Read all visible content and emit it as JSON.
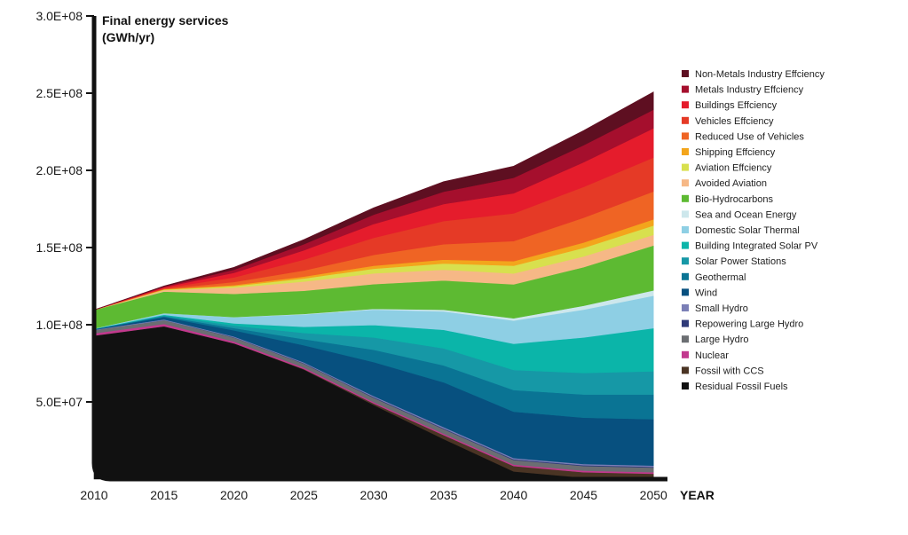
{
  "chart_data": {
    "type": "area",
    "stacked": true,
    "ylabel_line1": "Final energy services",
    "ylabel_line2": "(GWh/yr)",
    "xlabel": "YEAR",
    "xlim": [
      2010,
      2051
    ],
    "ylim": [
      0,
      300000000
    ],
    "grid": false,
    "legend_position": "right",
    "x_ticks": [
      2010,
      2015,
      2020,
      2025,
      2030,
      2035,
      2040,
      2045,
      2050
    ],
    "x_tick_labels": [
      "2010",
      "2015",
      "2020",
      "2025",
      "2030",
      "2035",
      "2040",
      "2045",
      "2050"
    ],
    "y_ticks": [
      50000000,
      100000000,
      150000000,
      200000000,
      250000000,
      300000000
    ],
    "y_tick_labels": [
      "5.0E+07",
      "1.0E+08",
      "1.5E+08",
      "2.0E+08",
      "2.5E+08",
      "3.0E+08"
    ],
    "x": [
      2010,
      2015,
      2020,
      2025,
      2030,
      2035,
      2040,
      2045,
      2050
    ],
    "series": [
      {
        "name": "Residual Fossil Fuels",
        "color": "#111111",
        "values": [
          93000000,
          99000000,
          88000000,
          71000000,
          48000000,
          26000000,
          5000000,
          1000000,
          0
        ]
      },
      {
        "name": "Fossil with CCS",
        "color": "#4a3424",
        "values": [
          0,
          0,
          0,
          300000,
          1000000,
          2500000,
          3500000,
          3500000,
          3500000
        ]
      },
      {
        "name": "Nuclear",
        "color": "#c2398e",
        "values": [
          1500000,
          1500000,
          1200000,
          1000000,
          900000,
          900000,
          900000,
          1000000,
          1000000
        ]
      },
      {
        "name": "Large Hydro",
        "color": "#6b6e72",
        "values": [
          2000000,
          2500000,
          2500000,
          2500000,
          2800000,
          3000000,
          3000000,
          3000000,
          3000000
        ]
      },
      {
        "name": "Repowering Large Hydro",
        "color": "#2f3a78",
        "values": [
          0,
          0,
          200000,
          300000,
          400000,
          500000,
          500000,
          500000,
          500000
        ]
      },
      {
        "name": "Small Hydro",
        "color": "#7b7fb6",
        "values": [
          300000,
          500000,
          500000,
          600000,
          700000,
          800000,
          800000,
          800000,
          800000
        ]
      },
      {
        "name": "Wind",
        "color": "#07507f",
        "values": [
          300000,
          1500000,
          4000000,
          11000000,
          22000000,
          29000000,
          30000000,
          30000000,
          30000000
        ]
      },
      {
        "name": "Geothermal",
        "color": "#0a7494",
        "values": [
          100000,
          500000,
          1500000,
          4000000,
          8000000,
          11000000,
          14000000,
          15000000,
          16000000
        ]
      },
      {
        "name": "Solar Power Stations",
        "color": "#1698a6",
        "values": [
          100000,
          500000,
          1500000,
          4000000,
          8000000,
          11000000,
          13000000,
          14000000,
          15000000
        ]
      },
      {
        "name": "Building Integrated Solar PV",
        "color": "#0bb5a9",
        "values": [
          100000,
          500000,
          1500000,
          4000000,
          8000000,
          12000000,
          17000000,
          23000000,
          28000000
        ]
      },
      {
        "name": "Domestic Solar Thermal",
        "color": "#8ecfe4",
        "values": [
          200000,
          1000000,
          4000000,
          8000000,
          10000000,
          12000000,
          15000000,
          18000000,
          21000000
        ]
      },
      {
        "name": "Sea and Ocean Energy",
        "color": "#cde7ec",
        "values": [
          0,
          0,
          100000,
          300000,
          500000,
          1000000,
          1500000,
          2500000,
          3500000
        ]
      },
      {
        "name": "Bio-Hydrocarbons",
        "color": "#5dba32",
        "values": [
          12000000,
          14000000,
          15000000,
          15000000,
          16000000,
          19000000,
          22000000,
          25000000,
          29000000
        ]
      },
      {
        "name": "Avoided Aviation",
        "color": "#f6b886",
        "values": [
          0,
          1000000,
          4000000,
          6000000,
          7000000,
          7000000,
          7000000,
          7000000,
          7000000
        ]
      },
      {
        "name": "Aviation Effciency",
        "color": "#d8e04e",
        "values": [
          0,
          300000,
          1000000,
          2000000,
          3000000,
          4000000,
          5000000,
          5500000,
          6000000
        ]
      },
      {
        "name": "Shipping Effciency",
        "color": "#f3a51c",
        "values": [
          0,
          200000,
          700000,
          1200000,
          2000000,
          2500000,
          3000000,
          3500000,
          4000000
        ]
      },
      {
        "name": "Reduced Use of Vehicles",
        "color": "#ef6424",
        "values": [
          0,
          300000,
          2000000,
          4000000,
          7000000,
          10000000,
          13000000,
          16000000,
          18000000
        ]
      },
      {
        "name": "Vehicles Effciency",
        "color": "#e53a26",
        "values": [
          0,
          500000,
          3000000,
          7000000,
          11000000,
          15000000,
          18000000,
          20000000,
          22000000
        ]
      },
      {
        "name": "Buildings Effciency",
        "color": "#e51c2c",
        "values": [
          0,
          500000,
          3000000,
          6000000,
          9000000,
          11000000,
          13000000,
          16000000,
          19000000
        ]
      },
      {
        "name": "Metals Industry Effciency",
        "color": "#a50f2d",
        "values": [
          0,
          500000,
          2000000,
          4000000,
          6000000,
          8000000,
          10000000,
          11000000,
          12000000
        ]
      },
      {
        "name": "Non-Metals Industry Effciency",
        "color": "#5e0f21",
        "values": [
          0,
          300000,
          1500000,
          3000000,
          4500000,
          6500000,
          7500000,
          9500000,
          11500000
        ]
      }
    ],
    "legend_order": [
      "Non-Metals Industry Effciency",
      "Metals Industry Effciency",
      "Buildings Effciency",
      "Vehicles Effciency",
      "Reduced Use of Vehicles",
      "Shipping Effciency",
      "Aviation Effciency",
      "Avoided Aviation",
      "Bio-Hydrocarbons",
      "Sea and Ocean Energy",
      "Domestic Solar Thermal",
      "Building Integrated Solar PV",
      "Solar Power Stations",
      "Geothermal",
      "Wind",
      "Small Hydro",
      "Repowering Large Hydro",
      "Large Hydro",
      "Nuclear",
      "Fossil with CCS",
      "Residual Fossil Fuels"
    ]
  }
}
